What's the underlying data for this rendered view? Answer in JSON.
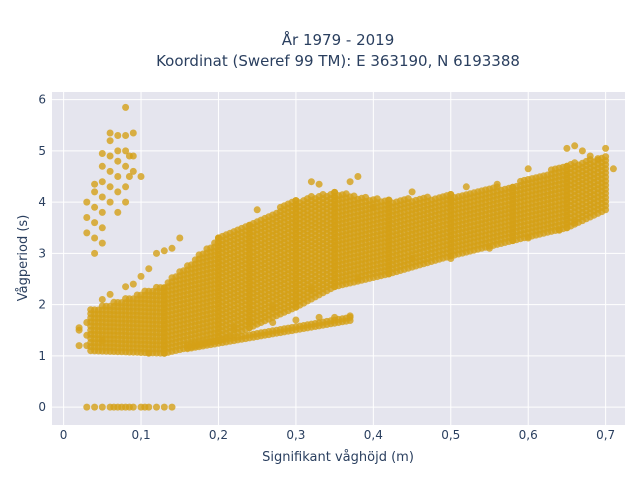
{
  "chart_data": {
    "type": "scatter",
    "title_line1": "År 1979 - 2019",
    "title_line2": "Koordinat (Sweref 99 TM): E 363190, N 6193388",
    "xlabel": "Signifikant våghöjd (m)",
    "ylabel": "Vågperiod (s)",
    "xlim": [
      -0.015,
      0.725
    ],
    "ylim": [
      -0.35,
      6.15
    ],
    "x_ticks": [
      0,
      0.1,
      0.2,
      0.3,
      0.4,
      0.5,
      0.6,
      0.7
    ],
    "x_tick_labels": [
      "0",
      "0,1",
      "0,2",
      "0,3",
      "0,4",
      "0,5",
      "0,6",
      "0,7"
    ],
    "y_ticks": [
      0,
      1,
      2,
      3,
      4,
      5,
      6
    ],
    "y_tick_labels": [
      "0",
      "1",
      "2",
      "3",
      "4",
      "5",
      "6"
    ],
    "grid": true,
    "marker_color": "#D4A017",
    "plot_bg": "#E5E5EE",
    "series": [
      {
        "values": [
          [
            0.03,
            0
          ],
          [
            0.04,
            0
          ],
          [
            0.05,
            0
          ],
          [
            0.06,
            0
          ],
          [
            0.065,
            0
          ],
          [
            0.07,
            0
          ],
          [
            0.075,
            0
          ],
          [
            0.08,
            0
          ],
          [
            0.085,
            0
          ],
          [
            0.09,
            0
          ],
          [
            0.1,
            0
          ],
          [
            0.105,
            0
          ],
          [
            0.11,
            0
          ],
          [
            0.12,
            0
          ],
          [
            0.13,
            0
          ],
          [
            0.14,
            0
          ],
          [
            0.02,
            1.2
          ],
          [
            0.02,
            1.5
          ],
          [
            0.02,
            1.55
          ],
          [
            0.03,
            1.2
          ],
          [
            0.03,
            1.4
          ],
          [
            0.03,
            1.65
          ],
          [
            0.03,
            3.4
          ],
          [
            0.03,
            3.7
          ],
          [
            0.03,
            4.0
          ],
          [
            0.04,
            3.0
          ],
          [
            0.04,
            3.3
          ],
          [
            0.04,
            3.6
          ],
          [
            0.04,
            3.9
          ],
          [
            0.04,
            4.2
          ],
          [
            0.04,
            4.35
          ],
          [
            0.05,
            3.2
          ],
          [
            0.05,
            3.5
          ],
          [
            0.05,
            3.8
          ],
          [
            0.05,
            4.1
          ],
          [
            0.05,
            4.4
          ],
          [
            0.05,
            4.7
          ],
          [
            0.05,
            4.95
          ],
          [
            0.06,
            4.0
          ],
          [
            0.06,
            4.3
          ],
          [
            0.06,
            4.6
          ],
          [
            0.06,
            4.9
          ],
          [
            0.06,
            5.2
          ],
          [
            0.06,
            5.35
          ],
          [
            0.07,
            3.8
          ],
          [
            0.07,
            4.2
          ],
          [
            0.07,
            4.5
          ],
          [
            0.07,
            4.8
          ],
          [
            0.07,
            5.0
          ],
          [
            0.07,
            5.3
          ],
          [
            0.08,
            4.0
          ],
          [
            0.08,
            4.3
          ],
          [
            0.08,
            4.7
          ],
          [
            0.08,
            5.0
          ],
          [
            0.08,
            5.3
          ],
          [
            0.08,
            5.85
          ],
          [
            0.085,
            4.5
          ],
          [
            0.085,
            4.9
          ],
          [
            0.09,
            4.9
          ],
          [
            0.09,
            5.35
          ],
          [
            0.09,
            4.6
          ],
          [
            0.1,
            4.5
          ],
          [
            0.05,
            2.1
          ],
          [
            0.05,
            1.3
          ],
          [
            0.06,
            2.2
          ],
          [
            0.08,
            2.35
          ],
          [
            0.09,
            2.4
          ],
          [
            0.1,
            2.55
          ],
          [
            0.11,
            2.7
          ],
          [
            0.12,
            3.0
          ],
          [
            0.13,
            3.05
          ],
          [
            0.14,
            3.1
          ],
          [
            0.15,
            3.3
          ],
          [
            0.2,
            3.3
          ],
          [
            0.25,
            3.85
          ],
          [
            0.32,
            4.4
          ],
          [
            0.33,
            4.35
          ],
          [
            0.37,
            4.4
          ],
          [
            0.38,
            4.5
          ],
          [
            0.24,
            1.65
          ],
          [
            0.27,
            1.65
          ],
          [
            0.3,
            1.7
          ],
          [
            0.33,
            1.75
          ],
          [
            0.35,
            1.75
          ],
          [
            0.37,
            1.78
          ],
          [
            0.11,
            1.05
          ],
          [
            0.2,
            1.3
          ],
          [
            0.22,
            1.55
          ],
          [
            0.27,
            1.95
          ],
          [
            0.32,
            2.3
          ],
          [
            0.38,
            2.5
          ],
          [
            0.4,
            3.9
          ],
          [
            0.45,
            4.2
          ],
          [
            0.5,
            4.05
          ],
          [
            0.52,
            4.3
          ],
          [
            0.56,
            4.35
          ],
          [
            0.6,
            4.65
          ],
          [
            0.65,
            5.05
          ],
          [
            0.66,
            5.1
          ],
          [
            0.67,
            5.0
          ],
          [
            0.68,
            4.9
          ],
          [
            0.69,
            4.85
          ],
          [
            0.7,
            5.05
          ],
          [
            0.71,
            4.65
          ],
          [
            0.45,
            2.9
          ],
          [
            0.5,
            2.9
          ],
          [
            0.55,
            3.1
          ],
          [
            0.6,
            3.3
          ],
          [
            0.64,
            3.45
          ],
          [
            0.66,
            3.6
          ]
        ]
      }
    ],
    "bands": [
      {
        "x_start": 0.035,
        "x_end": 0.13,
        "lo_start": 1.1,
        "lo_end": 1.05,
        "hi_start": 1.9,
        "hi_end": 2.4
      },
      {
        "x_start": 0.13,
        "x_end": 0.2,
        "lo_start": 1.05,
        "lo_end": 1.3,
        "hi_start": 2.4,
        "hi_end": 3.3
      },
      {
        "x_start": 0.2,
        "x_end": 0.24,
        "lo_start": 1.3,
        "lo_end": 1.55,
        "hi_start": 3.3,
        "hi_end": 3.6
      },
      {
        "x_start": 0.24,
        "x_end": 0.3,
        "lo_start": 1.55,
        "lo_end": 1.95,
        "hi_start": 3.6,
        "hi_end": 4.05
      },
      {
        "x_start": 0.3,
        "x_end": 0.35,
        "lo_start": 1.95,
        "lo_end": 2.35,
        "hi_start": 4.05,
        "hi_end": 4.2
      },
      {
        "x_start": 0.35,
        "x_end": 0.42,
        "lo_start": 2.35,
        "lo_end": 2.6,
        "hi_start": 4.2,
        "hi_end": 4.05
      },
      {
        "x_start": 0.42,
        "x_end": 0.5,
        "lo_start": 2.6,
        "lo_end": 2.95,
        "hi_start": 4.05,
        "hi_end": 4.15
      },
      {
        "x_start": 0.5,
        "x_end": 0.58,
        "lo_start": 2.95,
        "lo_end": 3.25,
        "hi_start": 4.15,
        "hi_end": 4.35
      },
      {
        "x_start": 0.58,
        "x_end": 0.65,
        "lo_start": 3.25,
        "lo_end": 3.5,
        "hi_start": 4.35,
        "hi_end": 4.75
      },
      {
        "x_start": 0.65,
        "x_end": 0.7,
        "lo_start": 3.5,
        "lo_end": 3.85,
        "hi_start": 4.75,
        "hi_end": 4.9
      }
    ],
    "lower_branch": {
      "x_start": 0.16,
      "x_end": 0.37,
      "y_start": 1.2,
      "y_end": 1.75
    }
  }
}
